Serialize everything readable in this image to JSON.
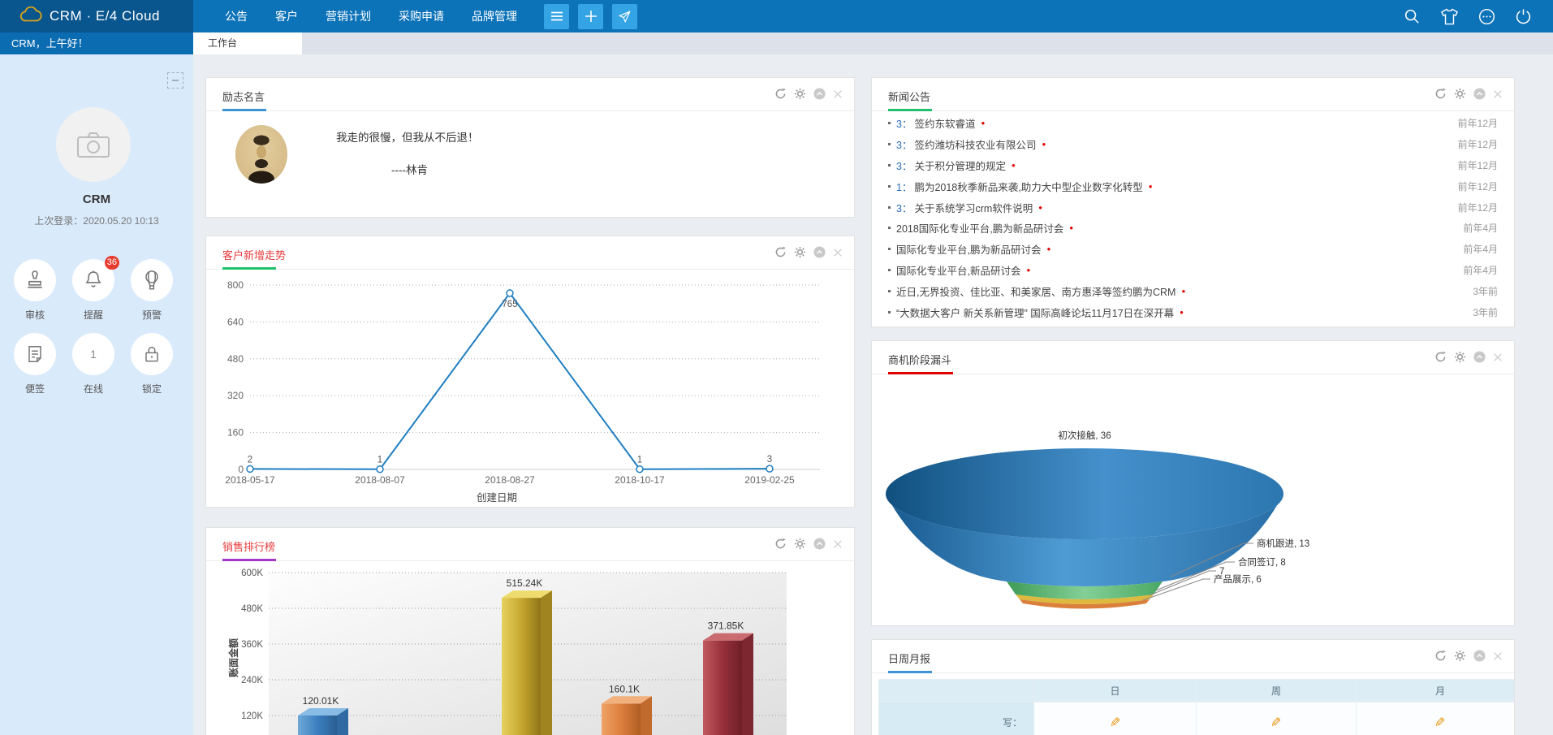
{
  "topbar": {
    "brand": "CRM · E/4 Cloud",
    "nav": [
      "公告",
      "客户",
      "营销计划",
      "采购申请",
      "品牌管理"
    ],
    "buttons": [
      {
        "icon": "menu-icon"
      },
      {
        "icon": "plus-icon"
      },
      {
        "icon": "send-icon"
      }
    ],
    "right_icons": [
      "search-icon",
      "theme-shirt-icon",
      "more-icon",
      "power-icon"
    ]
  },
  "greeting": "CRM，上午好！",
  "tab": {
    "label": "工作台"
  },
  "sidebar": {
    "username": "CRM",
    "last_login": "上次登录：2020.05.20 10:13",
    "shortcuts": [
      {
        "label": "审核",
        "icon": "stamp-icon"
      },
      {
        "label": "提醒",
        "icon": "bell-icon",
        "badge": "36"
      },
      {
        "label": "预警",
        "icon": "balloon-icon"
      },
      {
        "label": "便签",
        "icon": "note-icon"
      },
      {
        "label": "在线",
        "icon": "number-icon",
        "value": "1"
      },
      {
        "label": "锁定",
        "icon": "lock-icon"
      }
    ]
  },
  "panels": {
    "quote": {
      "title": "励志名言",
      "line1": "我走的很慢，但我从不后退！",
      "line2": "----林肯"
    },
    "trend": {
      "title": "客户新增走势"
    },
    "sales": {
      "title": "销售排行榜"
    },
    "news": {
      "title": "新闻公告",
      "items": [
        {
          "prefix": "3：",
          "text": "签约东软睿道",
          "time": "前年12月"
        },
        {
          "prefix": "3：",
          "text": "签约潍坊科技农业有限公司",
          "time": "前年12月"
        },
        {
          "prefix": "3：",
          "text": "关于积分管理的规定",
          "time": "前年12月"
        },
        {
          "prefix": "1：",
          "text": "鹏为2018秋季新品来袭,助力大中型企业数字化转型",
          "time": "前年12月"
        },
        {
          "prefix": "3：",
          "text": "关于系统学习crm软件说明",
          "time": "前年12月"
        },
        {
          "prefix": "",
          "text": "2018国际化专业平台,鹏为新品研讨会",
          "time": "前年4月"
        },
        {
          "prefix": "",
          "text": "国际化专业平台,鹏为新品研讨会",
          "time": "前年4月"
        },
        {
          "prefix": "",
          "text": "国际化专业平台,新品研讨会",
          "time": "前年4月"
        },
        {
          "prefix": "",
          "text": "近日,无界投资、佳比亚、和美家居、南方惠泽等签约鹏为CRM",
          "time": "3年前"
        },
        {
          "prefix": "",
          "text": "“大数据大客户 新关系新管理” 国际高峰论坛11月17日在深开幕",
          "time": "3年前"
        }
      ]
    },
    "funnel": {
      "title": "商机阶段漏斗"
    },
    "report": {
      "title": "日周月报",
      "columns": [
        "日",
        "周",
        "月"
      ],
      "rows": [
        {
          "label": "写："
        }
      ]
    }
  },
  "colors": {
    "topbar": "#0d73b9",
    "logo_bg": "#09568e",
    "square_button": "#35a4e4",
    "sidebar_bg": "#d9eafb",
    "badge": "#e83c30",
    "title_red": "#e83b3b",
    "news_dot": "#e00000",
    "news_prefix": "#2a6db5",
    "pencil": "#e8940a"
  },
  "chart_data": [
    {
      "type": "line",
      "title": "客户新增走势",
      "x": [
        "2018-05-17",
        "2018-08-07",
        "2018-08-27",
        "2018-10-17",
        "2019-02-25"
      ],
      "values": [
        2,
        1,
        765,
        1,
        3
      ],
      "xlabel": "创建日期",
      "ylim": [
        0,
        800
      ],
      "yticks": [
        0,
        160,
        320,
        480,
        640,
        800
      ],
      "grid": true,
      "line_color": "#1f7ec2"
    },
    {
      "type": "bar",
      "title": "销售排行榜",
      "ylabel": "账面金额",
      "values": [
        120010,
        515240,
        160100,
        371850
      ],
      "labels": [
        "120.01K",
        "515.24K",
        "160.1K",
        "371.85K"
      ],
      "ylim": [
        0,
        600000
      ],
      "yticks": [
        "120K",
        "240K",
        "360K",
        "480K",
        "600K"
      ],
      "grid": true,
      "colors": [
        {
          "light": "#6fa8d8",
          "base": "#3b7fc0",
          "dark": "#2a5e91",
          "top": "#89bce4",
          "side": "#2f6aa3"
        },
        {
          "light": "#e6d15f",
          "base": "#c6a72f",
          "dark": "#8f7417",
          "top": "#eedc6e",
          "side": "#a08420"
        },
        {
          "light": "#efa268",
          "base": "#dd7f3e",
          "dark": "#b05e22",
          "top": "#f2b07c",
          "side": "#c06a2c"
        },
        {
          "light": "#c05a60",
          "base": "#97303a",
          "dark": "#6e1f27",
          "top": "#ca6b70",
          "side": "#7d2830"
        }
      ]
    },
    {
      "type": "funnel",
      "title": "商机阶段漏斗",
      "segments": [
        {
          "name": "初次接触",
          "value": 36,
          "color": "#2e7fc0"
        },
        {
          "name": "商机跟进",
          "value": 13,
          "color": "#55b06a"
        },
        {
          "name": "合同签订",
          "value": 8,
          "color": "#ddba3f"
        },
        {
          "name": "",
          "value": 7,
          "color": "#e0a33c"
        },
        {
          "name": "产品展示",
          "value": 6,
          "color": "#db7f3c"
        }
      ]
    }
  ]
}
